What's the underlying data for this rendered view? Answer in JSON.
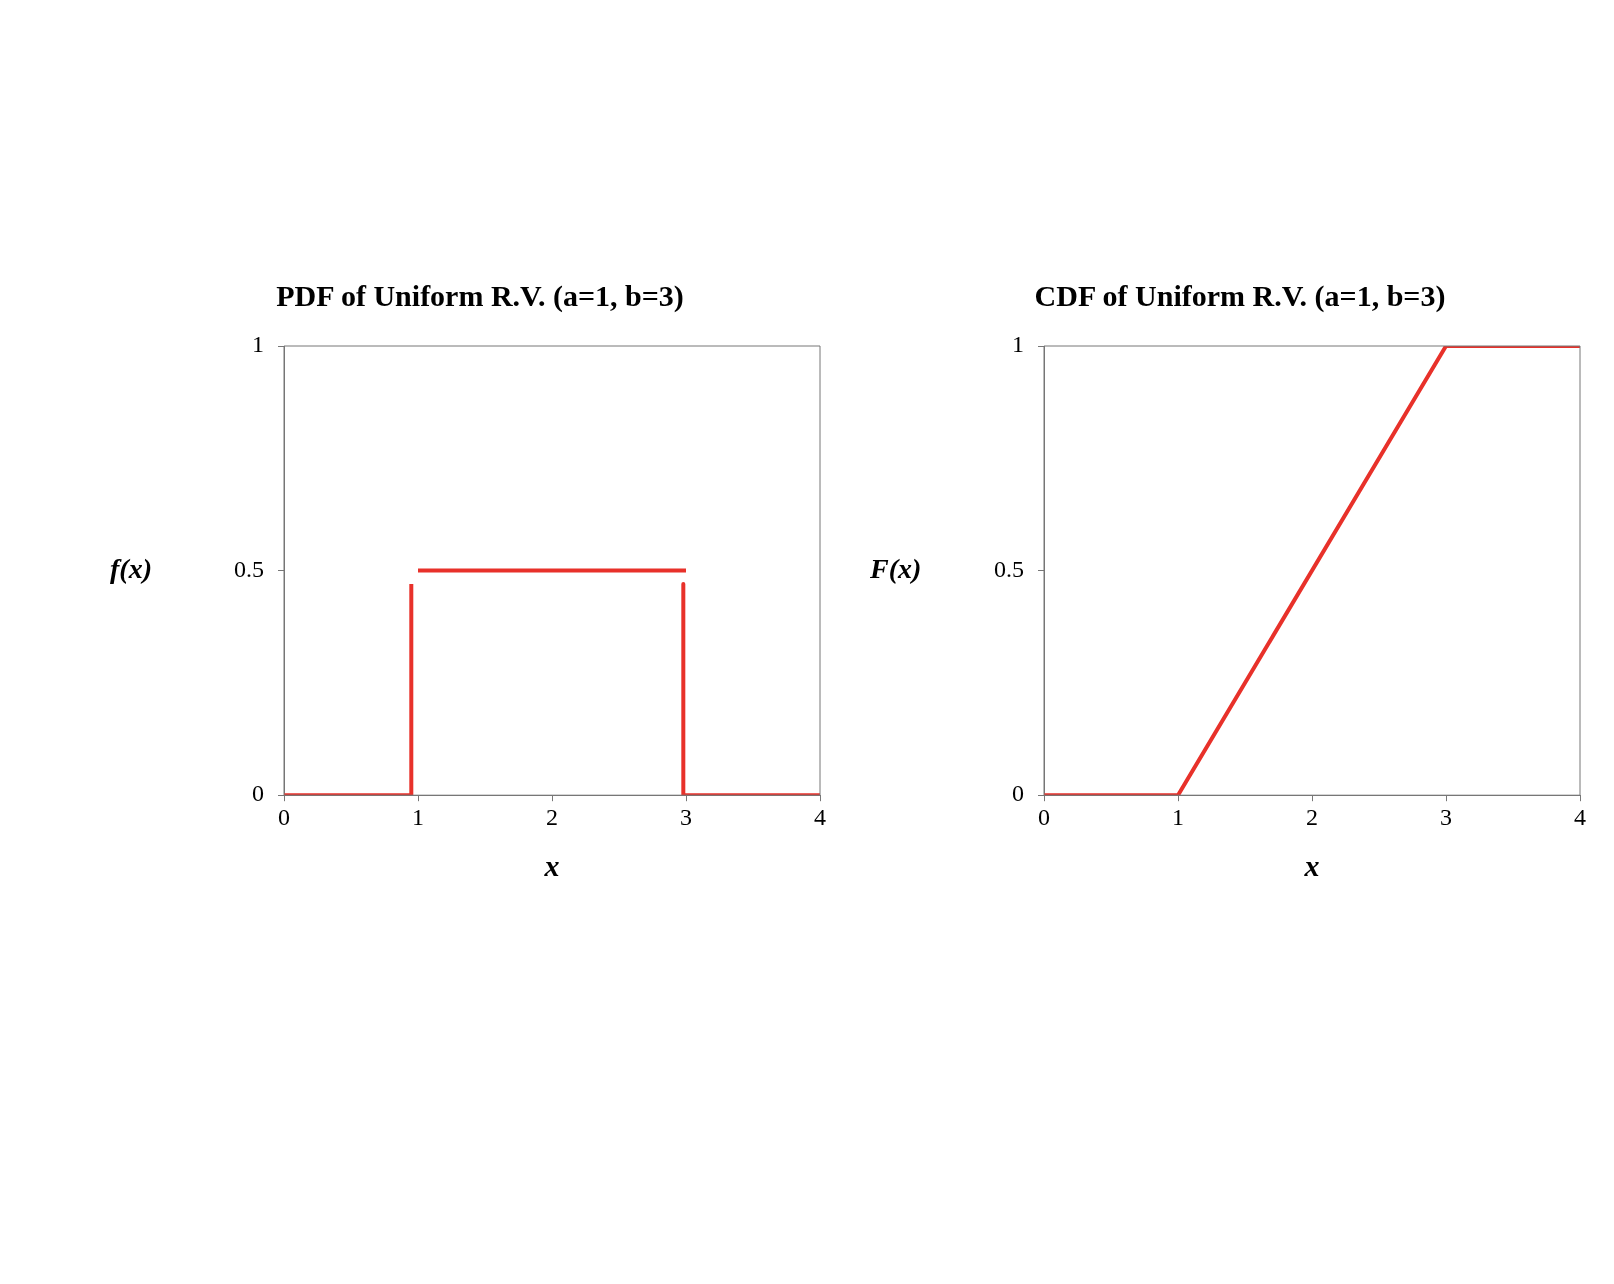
{
  "chart_data": [
    {
      "type": "line",
      "title": "PDF of Uniform R.V. (a=1, b=3)",
      "xlabel": "x",
      "ylabel": "f(x)",
      "xlim": [
        0,
        4
      ],
      "xticks": [
        0,
        1,
        2,
        3,
        4
      ],
      "ylim": [
        0,
        1
      ],
      "yticks": [
        0,
        0.5,
        1
      ],
      "grid": false,
      "legend": false,
      "marker": "none",
      "line_style": "solid",
      "series": [
        {
          "color": "#e8312a",
          "x": [
            0,
            0.95
          ],
          "values": [
            0,
            0
          ]
        },
        {
          "color": "#e8312a",
          "x": [
            0.95,
            0.95
          ],
          "values": [
            0,
            0.47
          ]
        },
        {
          "color": "#e8312a",
          "x": [
            1,
            3
          ],
          "values": [
            0.5,
            0.5
          ]
        },
        {
          "color": "#e8312a",
          "x": [
            2.98,
            2.98
          ],
          "values": [
            0.47,
            0
          ]
        },
        {
          "color": "#e8312a",
          "x": [
            2.98,
            4
          ],
          "values": [
            0,
            0
          ]
        }
      ]
    },
    {
      "type": "line",
      "title": "CDF of Uniform R.V. (a=1, b=3)",
      "xlabel": "x",
      "ylabel": "F(x)",
      "xlim": [
        0,
        4
      ],
      "xticks": [
        0,
        1,
        2,
        3,
        4
      ],
      "ylim": [
        0,
        1
      ],
      "yticks": [
        0,
        0.5,
        1
      ],
      "grid": false,
      "legend": false,
      "marker": "none",
      "line_style": "solid",
      "series": [
        {
          "color": "#e8312a",
          "x": [
            0,
            1,
            3,
            4
          ],
          "values": [
            0,
            0,
            1,
            1
          ]
        }
      ]
    }
  ]
}
